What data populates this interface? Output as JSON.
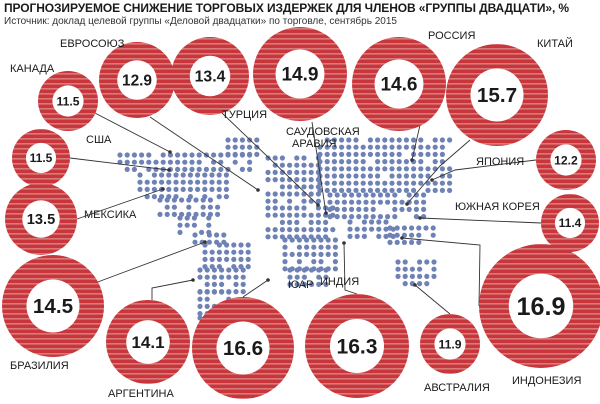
{
  "title": "ПРОГНОЗИРУЕМОЕ СНИЖЕНИЕ ТОРГОВЫХ ИЗДЕРЖЕК ДЛЯ ЧЛЕНОВ «ГРУППЫ ДВАДЦАТИ», %",
  "source": "Источник: доклад целевой группы «Деловой двадцатки» по торговле, сентябрь 2015",
  "colors": {
    "bubble": "#c8363b",
    "stripe": "#d97a7a",
    "map_dot": "#6f82b6",
    "line": "#333333"
  },
  "chart_data": {
    "type": "bubble",
    "title": "ПРОГНОЗИРУЕМОЕ СНИЖЕНИЕ ТОРГОВЫХ ИЗДЕРЖЕК ДЛЯ ЧЛЕНОВ «ГРУППЫ ДВАДЦАТИ», %",
    "unit": "%",
    "points": [
      {
        "id": "canada",
        "label": "КАНАДА",
        "value": 11.5
      },
      {
        "id": "eu",
        "label": "ЕВРОСОЮЗ",
        "value": 12.9
      },
      {
        "id": "turkey",
        "label": "ТУРЦИЯ",
        "value": 13.4
      },
      {
        "id": "saudi",
        "label": "САУДОВСКАЯ АРАВИЯ",
        "value": 14.9
      },
      {
        "id": "russia",
        "label": "РОССИЯ",
        "value": 14.6
      },
      {
        "id": "china",
        "label": "КИТАЙ",
        "value": 15.7
      },
      {
        "id": "usa",
        "label": "США",
        "value": 11.5
      },
      {
        "id": "japan",
        "label": "ЯПОНИЯ",
        "value": 12.2
      },
      {
        "id": "mexico",
        "label": "МЕКСИКА",
        "value": 13.5
      },
      {
        "id": "korea",
        "label": "ЮЖНАЯ КОРЕЯ",
        "value": 11.4
      },
      {
        "id": "brazil",
        "label": "БРАЗИЛИЯ",
        "value": 14.5
      },
      {
        "id": "argentina",
        "label": "АРГЕНТИНА",
        "value": 14.1
      },
      {
        "id": "sar",
        "label": "ЮАР",
        "value": 16.6
      },
      {
        "id": "india",
        "label": "ИНДИЯ",
        "value": 16.3
      },
      {
        "id": "australia",
        "label": "АВСТРАЛИЯ",
        "value": 11.9
      },
      {
        "id": "indonesia",
        "label": "ИНДОНЕЗИЯ",
        "value": 16.9
      }
    ]
  }
}
